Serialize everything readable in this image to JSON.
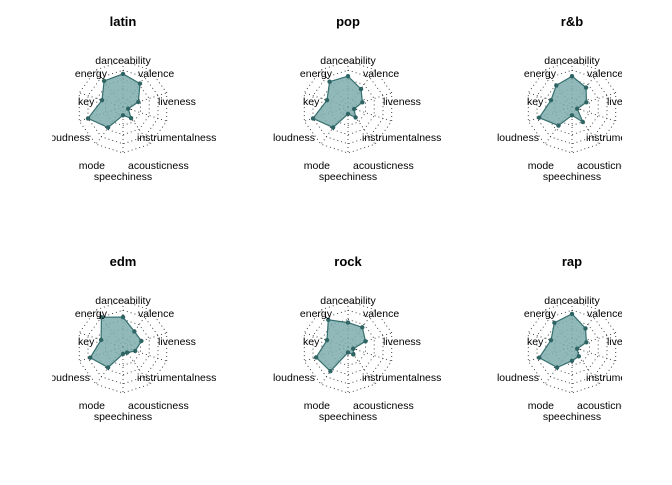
{
  "chart_data": {
    "type": "radar",
    "axes": [
      "danceability",
      "valence",
      "liveness",
      "instrumentalness",
      "acousticness",
      "speechiness",
      "mode",
      "loudness",
      "key",
      "energy"
    ],
    "range": [
      0,
      1
    ],
    "rings": 5,
    "colors": {
      "fill": "#7fadad",
      "stroke": "#356f6f",
      "point": "#2f6464"
    },
    "panels": [
      {
        "title": "latin",
        "values": [
          0.72,
          0.63,
          0.35,
          0.12,
          0.3,
          0.18,
          0.55,
          0.8,
          0.48,
          0.7
        ]
      },
      {
        "title": "pop",
        "values": [
          0.67,
          0.48,
          0.33,
          0.14,
          0.28,
          0.15,
          0.55,
          0.8,
          0.48,
          0.68
        ]
      },
      {
        "title": "r&b",
        "values": [
          0.67,
          0.52,
          0.33,
          0.12,
          0.4,
          0.18,
          0.5,
          0.75,
          0.48,
          0.58
        ]
      },
      {
        "title": "edm",
        "values": [
          0.65,
          0.42,
          0.42,
          0.28,
          0.15,
          0.15,
          0.55,
          0.75,
          0.5,
          0.8
        ]
      },
      {
        "title": "rock",
        "values": [
          0.53,
          0.53,
          0.4,
          0.12,
          0.2,
          0.12,
          0.65,
          0.73,
          0.48,
          0.73
        ]
      },
      {
        "title": "rap",
        "values": [
          0.72,
          0.5,
          0.33,
          0.12,
          0.25,
          0.3,
          0.55,
          0.75,
          0.48,
          0.65
        ]
      }
    ]
  }
}
